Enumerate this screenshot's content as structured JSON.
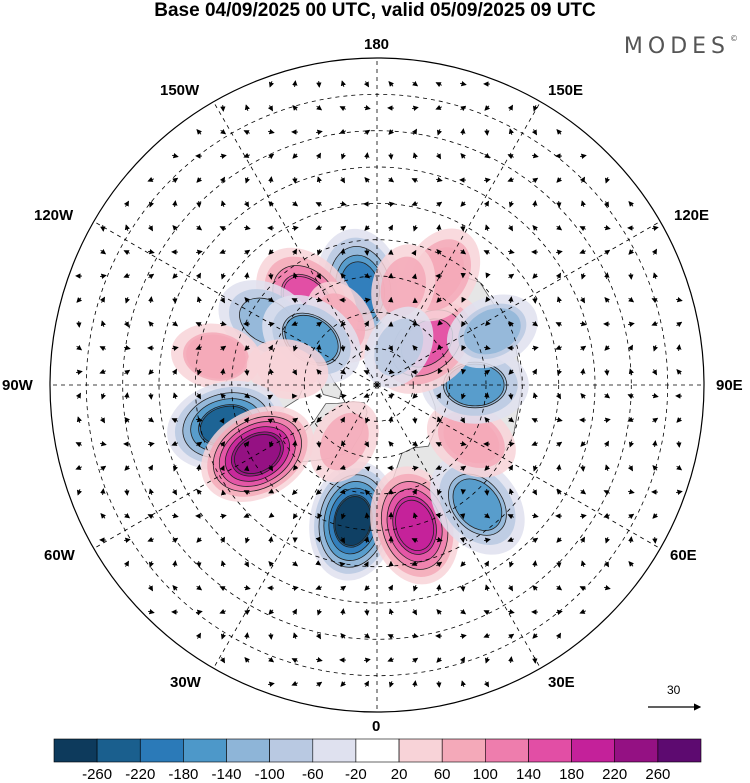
{
  "title": "Base 04/09/2025 00 UTC, valid 05/09/2025 09 UTC",
  "brand": {
    "name": "MODES",
    "mark": "©"
  },
  "lon_labels": {
    "top": "180",
    "bottom": "0",
    "left": "90W",
    "right": "90E",
    "upper_left_1": "150W",
    "upper_left_2": "120W",
    "upper_right_1": "150E",
    "upper_right_2": "120E",
    "lower_left_1": "60W",
    "lower_left_2": "30W",
    "lower_right_1": "60E",
    "lower_right_2": "30E"
  },
  "vector_scale": {
    "value": "30",
    "icon": "arrow-right-icon"
  },
  "colorbar": {
    "colors": [
      "#0d3a5c",
      "#1a5f8e",
      "#2b7ab8",
      "#4d98c9",
      "#8eb5d8",
      "#b9c9e2",
      "#dfe1ef",
      "#ffffff",
      "#f8d3d8",
      "#f4a9b9",
      "#ee7dad",
      "#e24ea5",
      "#c4219a",
      "#941183",
      "#5d0a70"
    ],
    "labels": [
      "-260",
      "-220",
      "-180",
      "-140",
      "-100",
      "-60",
      "-20",
      "20",
      "60",
      "100",
      "140",
      "180",
      "220",
      "260"
    ]
  },
  "anomaly_centers": [
    {
      "lon": -170,
      "lat": 63,
      "value": -170
    },
    {
      "lon": -140,
      "lat": 60,
      "value": 150
    },
    {
      "lon": -150,
      "lat": 70,
      "value": 60
    },
    {
      "lon": -120,
      "lat": 55,
      "value": -100
    },
    {
      "lon": -125,
      "lat": 68,
      "value": -110
    },
    {
      "lon": -100,
      "lat": 45,
      "value": 70
    },
    {
      "lon": -100,
      "lat": 65,
      "value": 50
    },
    {
      "lon": -75,
      "lat": 47,
      "value": -190
    },
    {
      "lon": -60,
      "lat": 52,
      "value": 240
    },
    {
      "lon": -10,
      "lat": 52,
      "value": -230
    },
    {
      "lon": 15,
      "lat": 50,
      "value": 200
    },
    {
      "lon": 40,
      "lat": 47,
      "value": -120
    },
    {
      "lon": 60,
      "lat": 60,
      "value": 80
    },
    {
      "lon": 90,
      "lat": 63,
      "value": -110
    },
    {
      "lon": 130,
      "lat": 72,
      "value": 140
    },
    {
      "lon": 115,
      "lat": 55,
      "value": -80
    },
    {
      "lon": 150,
      "lat": 55,
      "value": 90
    },
    {
      "lon": 165,
      "lat": 62,
      "value": 60
    },
    {
      "lon": 150,
      "lat": 78,
      "value": -60
    },
    {
      "lon": -30,
      "lat": 72,
      "value": 60
    }
  ],
  "colors": {
    "land": "#e6e6e6",
    "coast": "#555555",
    "grid": "#000000",
    "vector": "#000000"
  }
}
